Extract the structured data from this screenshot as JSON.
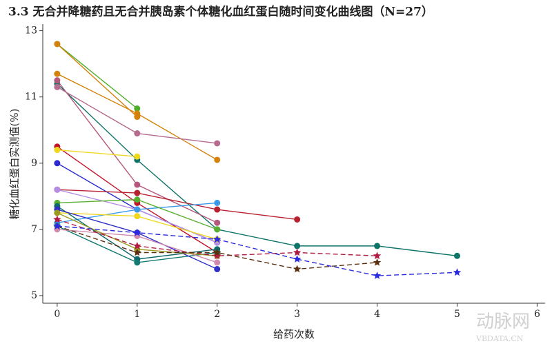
{
  "chart_data": {
    "type": "line",
    "title": "3.3 无合并降糖药且无合并胰岛素个体糖化血红蛋白随时间变化曲线图（N=27）",
    "x_label": "给药次数",
    "y_label": "糖化血红蛋白实测值(%)",
    "watermark": [
      "动脉网",
      "VBDATA.CN"
    ],
    "x": [
      0,
      1,
      2,
      3,
      4,
      5
    ],
    "xlim": [
      -0.18,
      6.1
    ],
    "xticks": [
      0,
      1,
      2,
      3,
      4,
      5,
      6
    ],
    "ylim": [
      4.77,
      13.2
    ],
    "yticks": [
      5,
      7,
      9,
      11,
      13
    ],
    "series": [
      {
        "color": "#4daf2a",
        "values": [
          12.6,
          10.65,
          null,
          null,
          null,
          null
        ]
      },
      {
        "color": "#d4820a",
        "values": [
          12.6,
          10.4,
          null,
          null,
          null,
          null
        ]
      },
      {
        "color": "#d4820a",
        "values": [
          11.7,
          10.5,
          9.1,
          null,
          null,
          null
        ]
      },
      {
        "color": "#0e7468",
        "values": [
          11.4,
          9.1,
          7.0,
          6.5,
          6.5,
          6.2
        ]
      },
      {
        "color": "#b4587e",
        "values": [
          11.5,
          8.35,
          7.2,
          null,
          null,
          null
        ]
      },
      {
        "color": "#b46b8e",
        "values": [
          11.3,
          9.9,
          9.6,
          null,
          null,
          null
        ]
      },
      {
        "color": "#c0142a",
        "values": [
          9.5,
          7.8,
          6.3,
          null,
          null,
          null
        ]
      },
      {
        "color": "#f0d820",
        "values": [
          9.4,
          9.2,
          null,
          null,
          null,
          null
        ]
      },
      {
        "color": "#2a2ad0",
        "values": [
          9.0,
          7.6,
          6.6,
          null,
          null,
          null
        ]
      },
      {
        "color": "#b82030",
        "values": [
          8.2,
          8.1,
          7.6,
          7.3,
          null,
          null
        ]
      },
      {
        "color": "#b48ce6",
        "values": [
          8.2,
          7.6,
          6.6,
          null,
          null,
          null
        ]
      },
      {
        "color": "#3a9ae8",
        "values": [
          7.2,
          7.6,
          7.8,
          null,
          null,
          null
        ]
      },
      {
        "color": "#58b030",
        "values": [
          7.8,
          7.9,
          7.0,
          null,
          null,
          null
        ]
      },
      {
        "color": "#0e6a6a",
        "values": [
          7.7,
          6.1,
          6.4,
          null,
          null,
          null
        ]
      },
      {
        "color": "#f0d820",
        "values": [
          7.5,
          7.4,
          6.7,
          null,
          null,
          null
        ]
      },
      {
        "color": "#127a70",
        "values": [
          7.1,
          6.0,
          6.3,
          null,
          null,
          null
        ]
      },
      {
        "color": "#3030c8",
        "values": [
          7.6,
          6.9,
          5.8,
          null,
          null,
          null
        ]
      },
      {
        "color": "#d08ab0",
        "values": [
          7.0,
          6.8,
          6.0,
          null,
          null,
          null
        ]
      },
      {
        "color": "#9a9a20",
        "values": [
          7.5,
          6.4,
          6.2,
          null,
          null,
          null
        ]
      },
      {
        "color": "#b01a40",
        "values": [
          7.3,
          6.5,
          6.2,
          6.3,
          6.2,
          null
        ],
        "dashed": true
      },
      {
        "color": "#5a3010",
        "values": [
          7.1,
          6.3,
          6.3,
          5.8,
          6.0,
          null
        ],
        "dashed": true
      },
      {
        "color": "#2a2ae0",
        "values": [
          7.1,
          6.9,
          6.7,
          6.1,
          5.6,
          5.7
        ],
        "dashed": true
      }
    ]
  }
}
